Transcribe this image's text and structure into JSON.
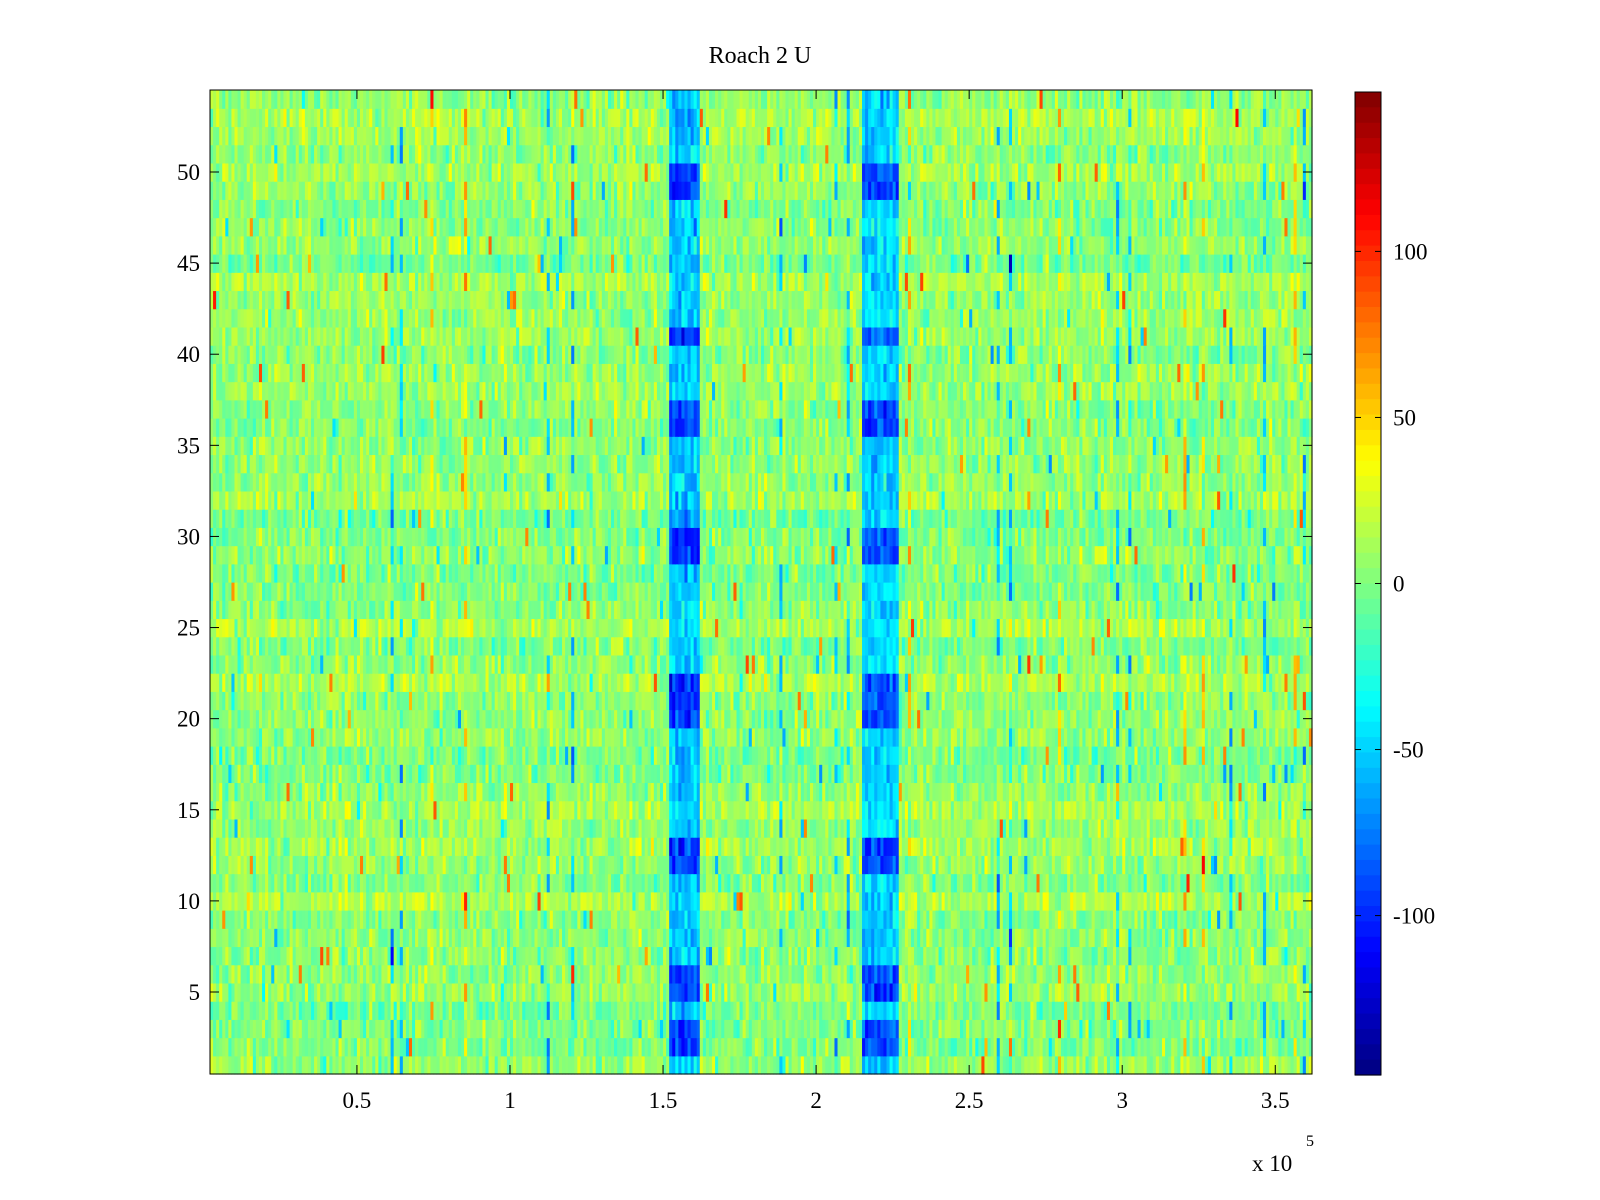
{
  "chart_data": {
    "type": "heatmap",
    "title": "Roach 2 U",
    "xlabel": "",
    "ylabel": "",
    "x_multiplier_label": "x 10",
    "x_multiplier_exponent": "5",
    "xlim": [
      0.02,
      3.62
    ],
    "ylim": [
      0.5,
      54.5
    ],
    "x_ticks": [
      {
        "value": 0.5,
        "label": "0.5"
      },
      {
        "value": 1,
        "label": "1"
      },
      {
        "value": 1.5,
        "label": "1.5"
      },
      {
        "value": 2,
        "label": "2"
      },
      {
        "value": 2.5,
        "label": "2.5"
      },
      {
        "value": 3,
        "label": "3"
      },
      {
        "value": 3.5,
        "label": "3.5"
      }
    ],
    "y_ticks": [
      {
        "value": 5,
        "label": "5"
      },
      {
        "value": 10,
        "label": "10"
      },
      {
        "value": 15,
        "label": "15"
      },
      {
        "value": 20,
        "label": "20"
      },
      {
        "value": 25,
        "label": "25"
      },
      {
        "value": 30,
        "label": "30"
      },
      {
        "value": 35,
        "label": "35"
      },
      {
        "value": 40,
        "label": "40"
      },
      {
        "value": 45,
        "label": "45"
      },
      {
        "value": 50,
        "label": "50"
      }
    ],
    "rows": 54,
    "columns": 360,
    "background_value": 5,
    "noise_amplitude": 12,
    "notable_features": [
      {
        "x_range": [
          1.52,
          1.62
        ],
        "value": -70,
        "strong_rows": [
          2,
          3,
          5,
          6,
          12,
          13,
          20,
          21,
          22,
          29,
          30,
          36,
          37,
          41,
          49,
          50
        ]
      },
      {
        "x_range": [
          2.15,
          2.27
        ],
        "value": -65,
        "strong_rows": [
          2,
          3,
          5,
          6,
          12,
          13,
          20,
          21,
          22,
          29,
          30,
          36,
          37,
          41,
          49,
          50
        ]
      }
    ],
    "colorbar": {
      "colormap": "jet",
      "range": [
        -148,
        148
      ],
      "ticks": [
        {
          "value": 100,
          "label": "100"
        },
        {
          "value": 50,
          "label": "50"
        },
        {
          "value": 0,
          "label": "0"
        },
        {
          "value": -50,
          "label": "-50"
        },
        {
          "value": -100,
          "label": "-100"
        }
      ]
    }
  }
}
